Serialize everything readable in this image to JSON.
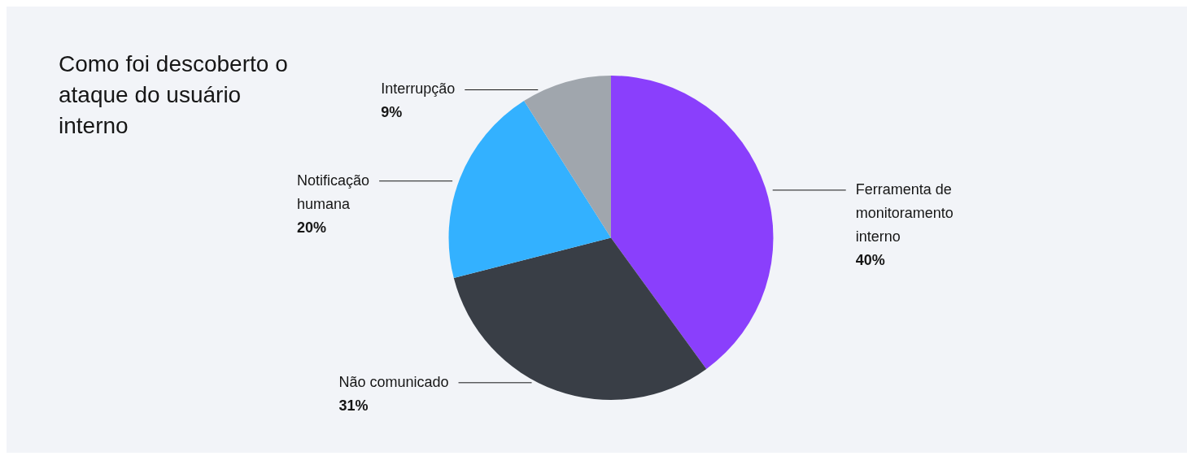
{
  "chart_data": {
    "type": "pie",
    "title": "Como foi descoberto o ataque do usuário interno",
    "categories": [
      "Ferramenta de monitoramento interno",
      "Não comunicado",
      "Notificação humana",
      "Interrupção"
    ],
    "values": [
      40,
      31,
      20,
      9
    ],
    "value_labels": [
      "40%",
      "31%",
      "20%",
      "9%"
    ],
    "colors": [
      "#8a3ffc",
      "#393e46",
      "#33b1ff",
      "#a0a6ad"
    ],
    "legend": false
  }
}
